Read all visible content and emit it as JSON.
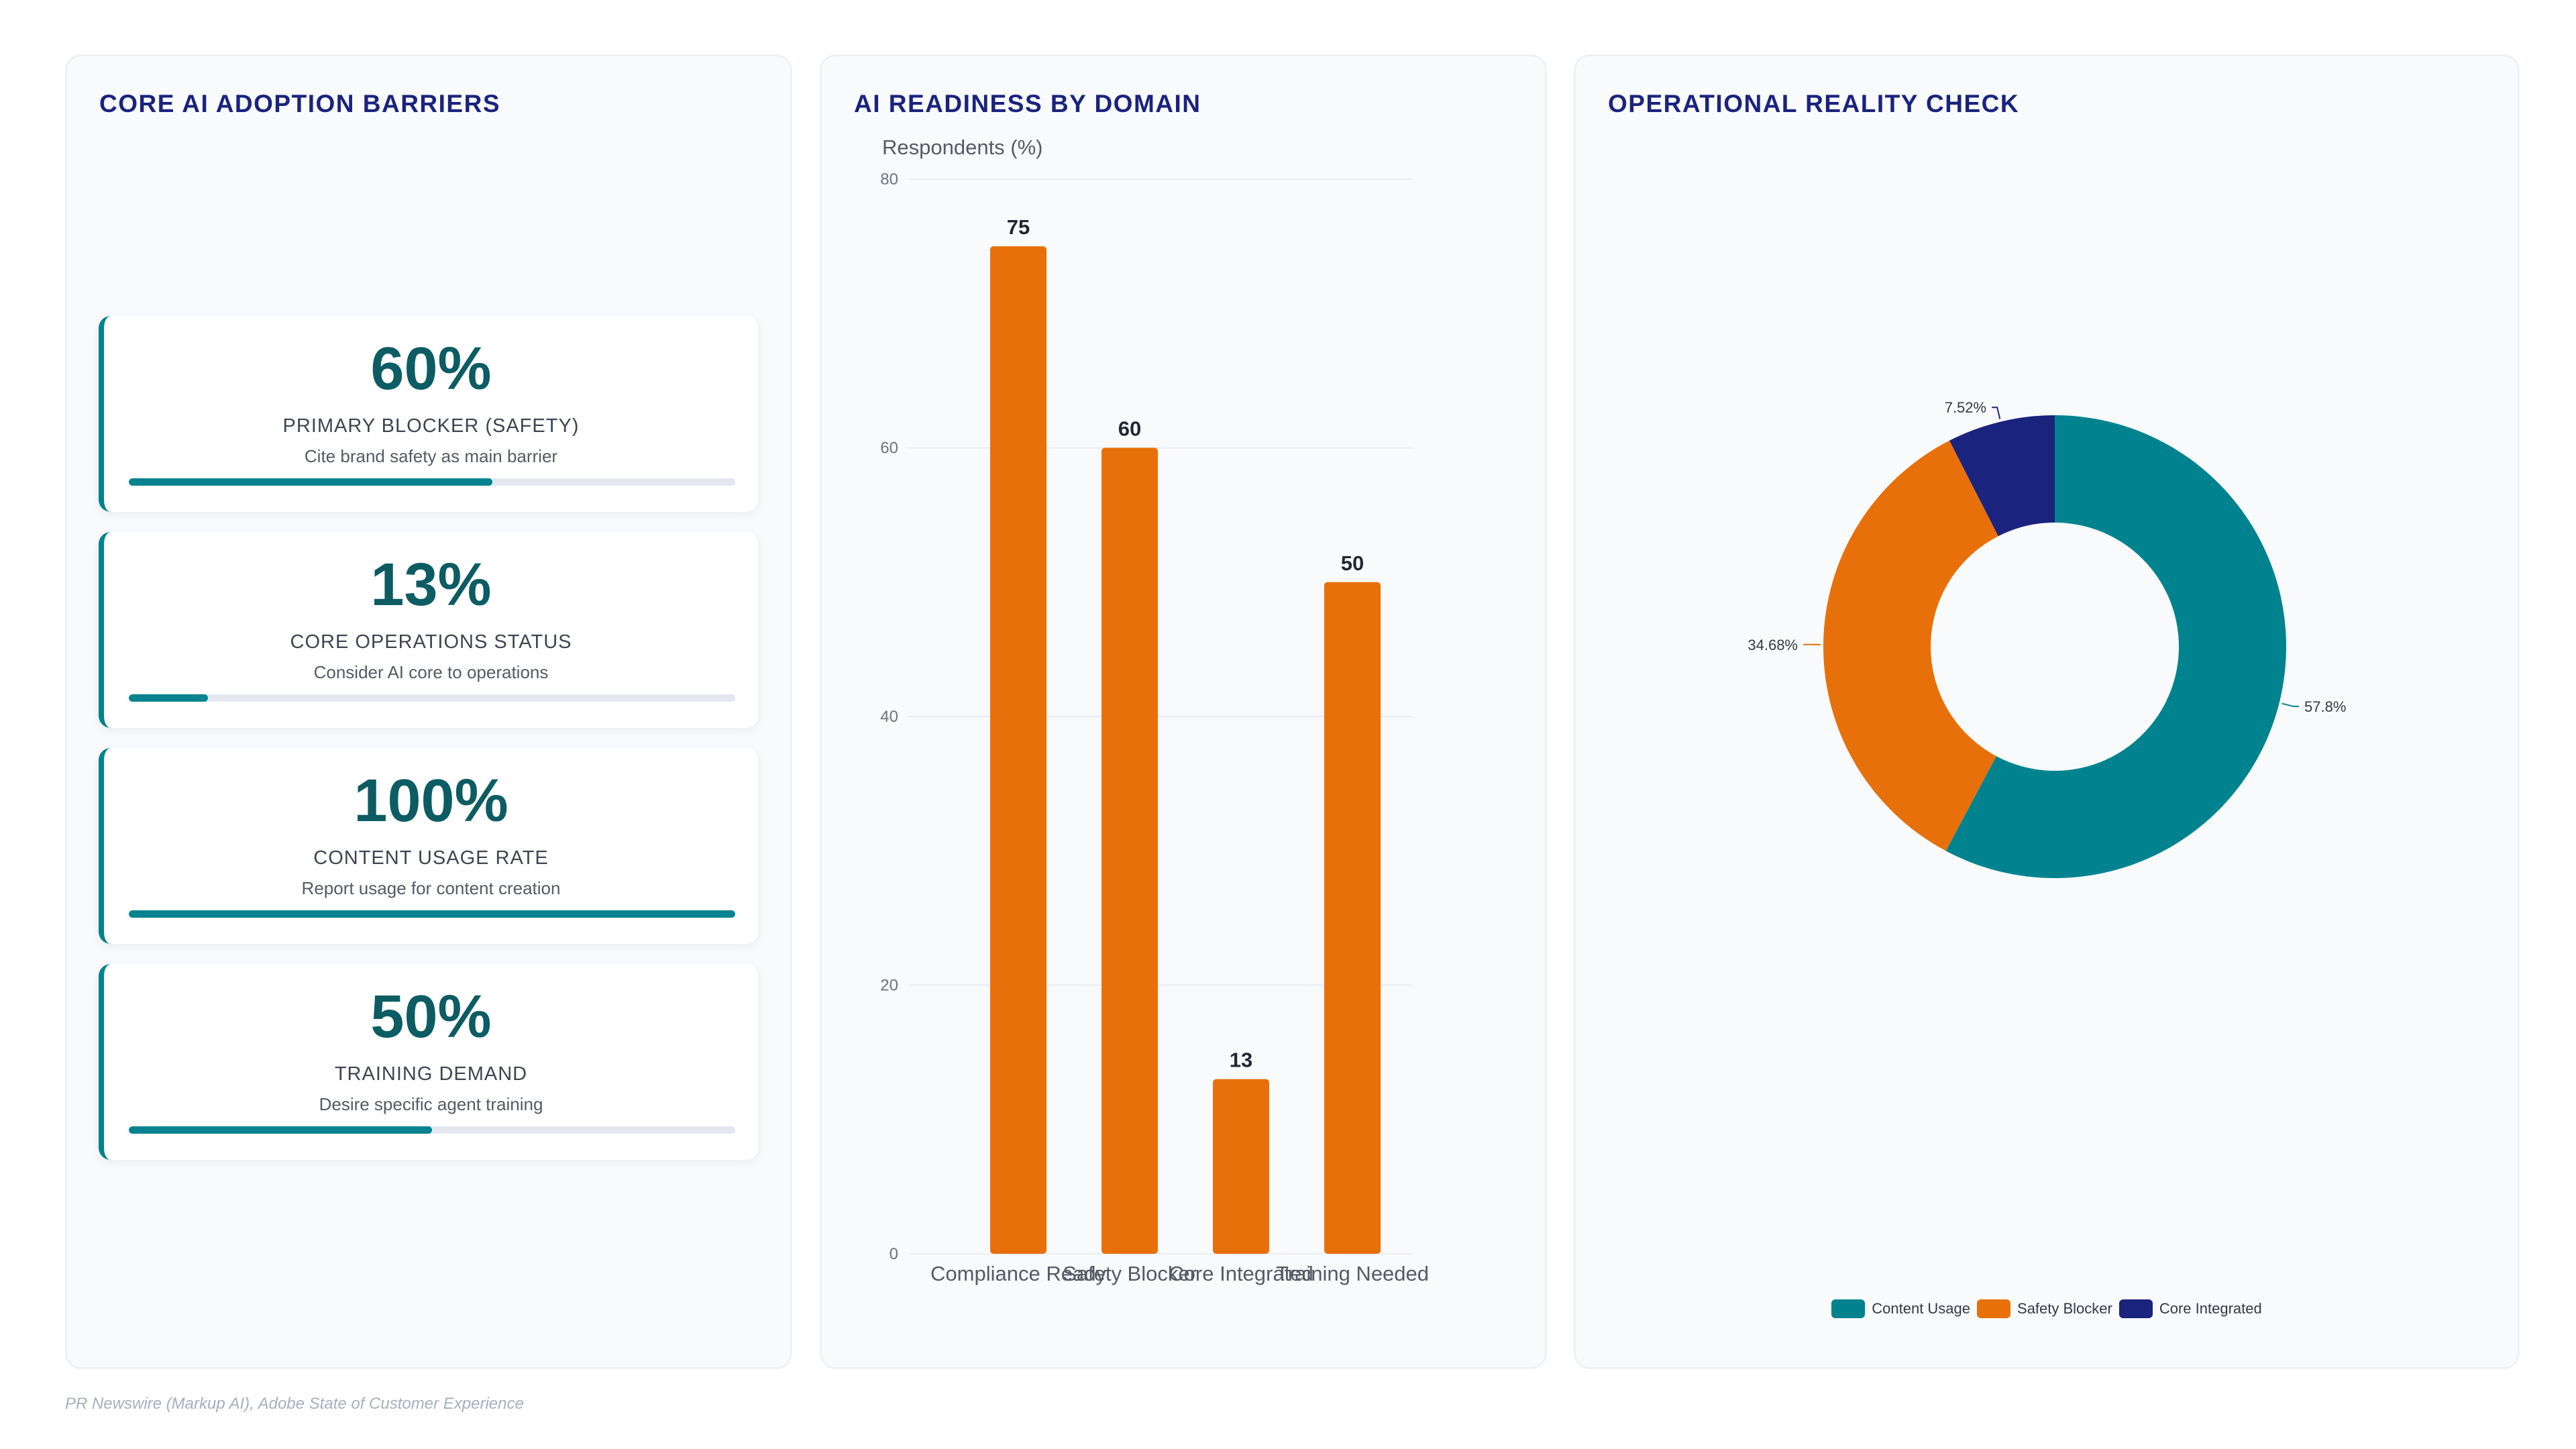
{
  "panels": {
    "left": {
      "title": "CORE AI ADOPTION BARRIERS"
    },
    "mid": {
      "title": "AI READINESS BY DOMAIN"
    },
    "right": {
      "title": "OPERATIONAL REALITY CHECK"
    }
  },
  "kpis": [
    {
      "value": "60%",
      "label": "PRIMARY BLOCKER (SAFETY)",
      "sub": "Cite brand safety as main barrier",
      "progress": 60
    },
    {
      "value": "13%",
      "label": "CORE OPERATIONS STATUS",
      "sub": "Consider AI core to operations",
      "progress": 13
    },
    {
      "value": "100%",
      "label": "CONTENT USAGE RATE",
      "sub": "Report usage for content creation",
      "progress": 100
    },
    {
      "value": "50%",
      "label": "TRAINING DEMAND",
      "sub": "Desire specific agent training",
      "progress": 50
    }
  ],
  "chart_data": [
    {
      "type": "bar",
      "title": "AI READINESS BY DOMAIN",
      "ylabel": "Respondents (%)",
      "xlabel": "",
      "categories": [
        "Compliance Ready",
        "Safety Blocker",
        "Core Integrated",
        "Training Needed"
      ],
      "values": [
        75,
        60,
        13,
        50
      ],
      "ylim": [
        0,
        80
      ],
      "yticks": [
        0,
        20,
        40,
        60,
        80
      ],
      "color": "#e8700a",
      "grid": true
    },
    {
      "type": "pie",
      "subtype": "donut",
      "title": "OPERATIONAL REALITY CHECK",
      "categories": [
        "Content Usage",
        "Safety Blocker",
        "Core Integrated"
      ],
      "values": [
        57.8,
        34.68,
        7.52
      ],
      "labels": [
        "57.8%",
        "34.68%",
        "7.52%"
      ],
      "colors": [
        "#00838f",
        "#e8700a",
        "#1a237e"
      ],
      "legend": "bottom"
    }
  ],
  "footer": "PR Newswire (Markup AI), Adobe State of Customer Experience"
}
